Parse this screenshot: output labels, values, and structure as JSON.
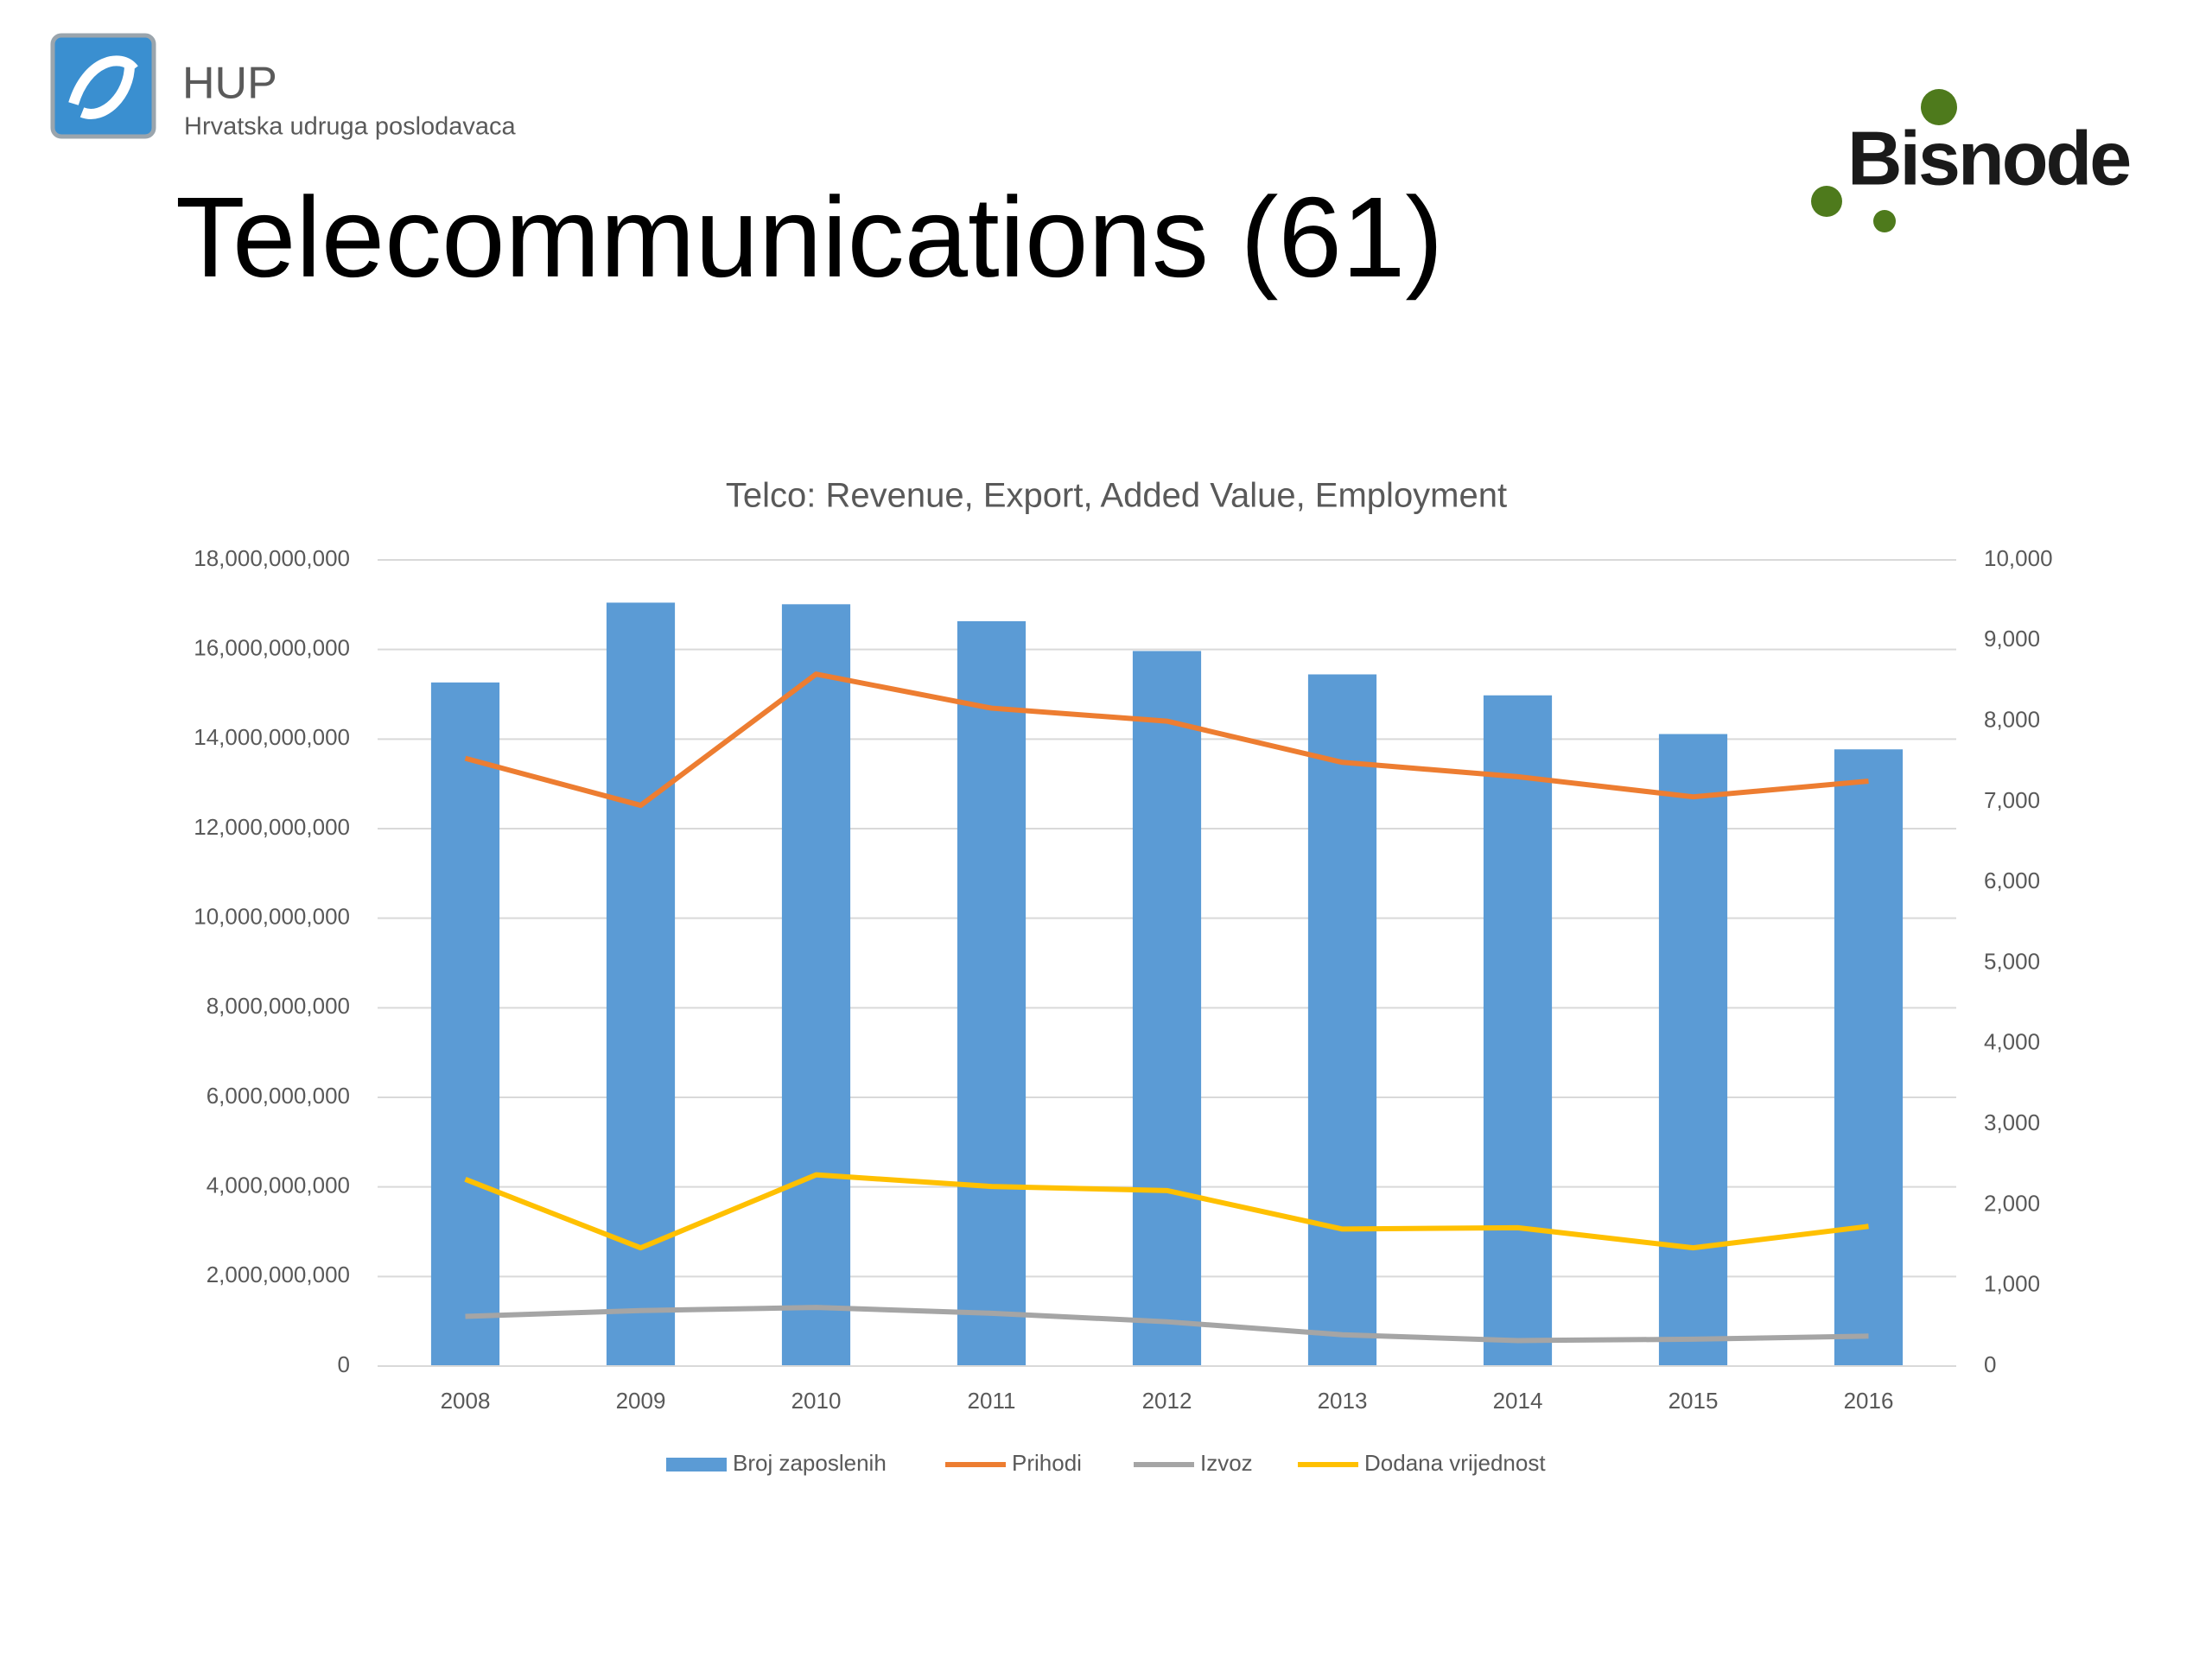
{
  "slide": {
    "title": "Telecommunications (61)",
    "hup_logo": {
      "name": "HUP",
      "subtitle": "Hrvatska udruga poslodavaca"
    },
    "bisnode_logo": "Bisnode"
  },
  "chart_data": {
    "type": "bar",
    "title": "Telco: Revenue, Export, Added Value, Employment",
    "categories": [
      "2008",
      "2009",
      "2010",
      "2011",
      "2012",
      "2013",
      "2014",
      "2015",
      "2016"
    ],
    "series": [
      {
        "name": "Broj zaposlenih",
        "type": "bar",
        "axis": "y2",
        "color": "#5b9bd5",
        "values": [
          8480,
          9470,
          9450,
          9240,
          8870,
          8580,
          8320,
          7840,
          7650
        ]
      },
      {
        "name": "Prihodi",
        "type": "line",
        "color": "#ed7d31",
        "values": [
          13570000000,
          12520000000,
          15450000000,
          14690000000,
          14400000000,
          13480000000,
          13160000000,
          12710000000,
          13060000000
        ]
      },
      {
        "name": "Izvoz",
        "type": "line",
        "color": "#a5a5a5",
        "values": [
          1110000000,
          1240000000,
          1310000000,
          1180000000,
          990000000,
          700000000,
          570000000,
          600000000,
          670000000
        ]
      },
      {
        "name": "Dodana vrijednost",
        "type": "line",
        "color": "#ffc000",
        "values": [
          4170000000,
          2640000000,
          4270000000,
          4010000000,
          3920000000,
          3060000000,
          3090000000,
          2640000000,
          3120000000
        ]
      }
    ],
    "ylim": [
      0,
      18000000000
    ],
    "yticks": [
      0,
      {
        "value": 2000000000,
        "label": "2,000,000,000"
      },
      {
        "value": 4000000000,
        "label": "4,000,000,000"
      },
      {
        "value": 6000000000,
        "label": "6,000,000,000"
      },
      {
        "value": 8000000000,
        "label": "8,000,000,000"
      },
      {
        "value": 10000000000,
        "label": "10,000,000,000"
      },
      {
        "value": 12000000000,
        "label": "12,000,000,000"
      },
      {
        "value": 14000000000,
        "label": "14,000,000,000"
      },
      {
        "value": 16000000000,
        "label": "16,000,000,000"
      },
      {
        "value": 18000000000,
        "label": "18,000,000,000"
      }
    ],
    "y2lim": [
      0,
      10000
    ],
    "y2ticks": [
      0,
      {
        "value": 1000,
        "label": "1,000"
      },
      {
        "value": 2000,
        "label": "2,000"
      },
      {
        "value": 3000,
        "label": "3,000"
      },
      {
        "value": 4000,
        "label": "4,000"
      },
      {
        "value": 5000,
        "label": "5,000"
      },
      {
        "value": 6000,
        "label": "6,000"
      },
      {
        "value": 7000,
        "label": "7,000"
      },
      {
        "value": 8000,
        "label": "8,000"
      },
      {
        "value": 9000,
        "label": "9,000"
      },
      {
        "value": 10000,
        "label": "10,000"
      }
    ],
    "grid": true,
    "legend": "bottom"
  }
}
